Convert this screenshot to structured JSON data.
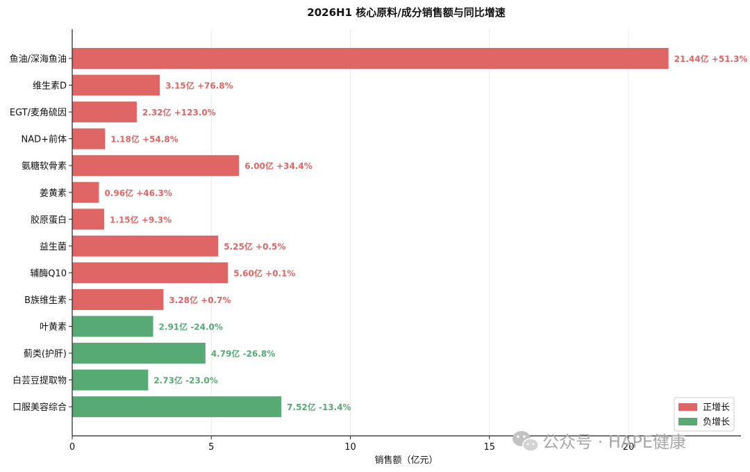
{
  "chart_data": {
    "type": "bar",
    "orientation": "horizontal",
    "title": "2026H1 核心原料/成分销售额与同比增速",
    "xlabel": "销售额（亿元）",
    "ylabel": "",
    "xlim": [
      0,
      24
    ],
    "xticks": [
      0,
      5,
      10,
      15,
      20
    ],
    "grid": "vertical",
    "legend_position": "bottom-right",
    "colors": {
      "positive": "#e06666",
      "negative": "#57aa74"
    },
    "categories": [
      "鱼油/深海鱼油",
      "维生素D",
      "EGT/麦角硫因",
      "NAD+前体",
      "氨糖软骨素",
      "姜黄素",
      "胶原蛋白",
      "益生菌",
      "辅酶Q10",
      "B族维生素",
      "叶黄素",
      "蓟类(护肝)",
      "白芸豆提取物",
      "口服美容综合"
    ],
    "values": [
      21.44,
      3.15,
      2.32,
      1.18,
      6.0,
      0.96,
      1.15,
      5.25,
      5.6,
      3.28,
      2.91,
      4.79,
      2.73,
      7.52
    ],
    "growth": [
      "+51.3%",
      "+76.8%",
      "+123.0%",
      "+54.8%",
      "+34.4%",
      "+46.3%",
      "+9.3%",
      "+0.5%",
      "+0.1%",
      "+0.7%",
      "-24.0%",
      "-26.8%",
      "-23.0%",
      "-13.4%"
    ],
    "value_labels": [
      "21.44亿",
      "3.15亿",
      "2.32亿",
      "1.18亿",
      "6.00亿",
      "0.96亿",
      "1.15亿",
      "5.25亿",
      "5.60亿",
      "3.28亿",
      "2.91亿",
      "4.79亿",
      "2.73亿",
      "7.52亿"
    ],
    "trend": [
      "positive",
      "positive",
      "positive",
      "positive",
      "positive",
      "positive",
      "positive",
      "positive",
      "positive",
      "positive",
      "negative",
      "negative",
      "negative",
      "negative"
    ],
    "legend": [
      {
        "key": "positive",
        "label": "正增长"
      },
      {
        "key": "negative",
        "label": "负增长"
      }
    ]
  },
  "watermark": {
    "icon": "wechat-icon",
    "text": "公众号 · HAPE健康"
  }
}
